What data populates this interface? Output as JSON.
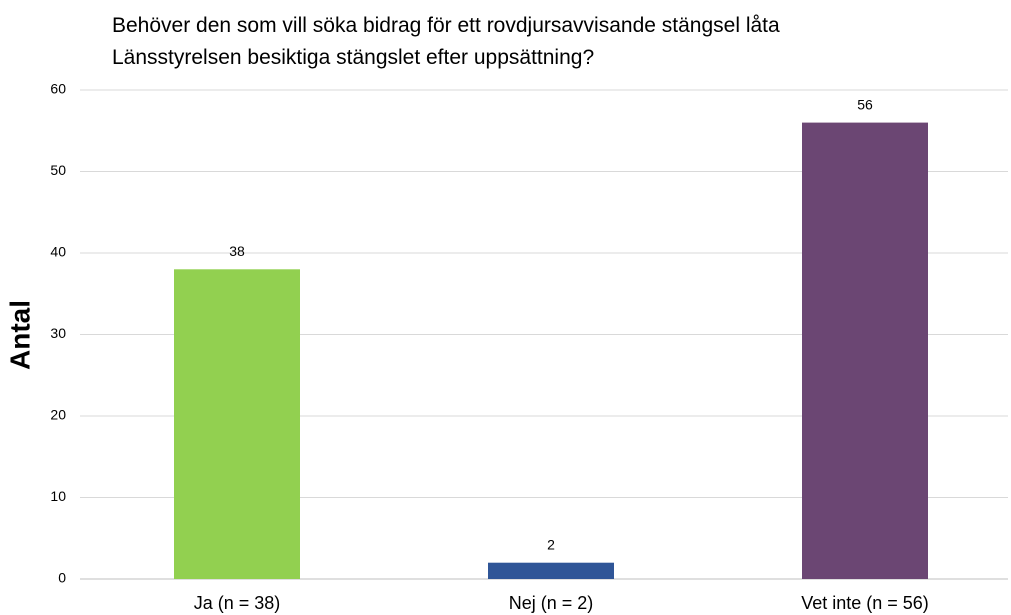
{
  "chart_data": {
    "type": "bar",
    "title": [
      "Behöver den som vill söka bidrag för ett rovdjursavvisande stängsel låta",
      "Länsstyrelsen besiktiga stängslet efter uppsättning?"
    ],
    "y_label": "Antal",
    "categories": [
      "Ja (n = 38)",
      "Nej (n = 2)",
      "Vet inte (n = 56)"
    ],
    "values": [
      38,
      2,
      56
    ],
    "colors": [
      "#92d050",
      "#2f5597",
      "#6b4673"
    ],
    "ylim": [
      0,
      60
    ],
    "yticks": [
      0,
      10,
      20,
      30,
      40,
      50,
      60
    ],
    "grid": true
  }
}
